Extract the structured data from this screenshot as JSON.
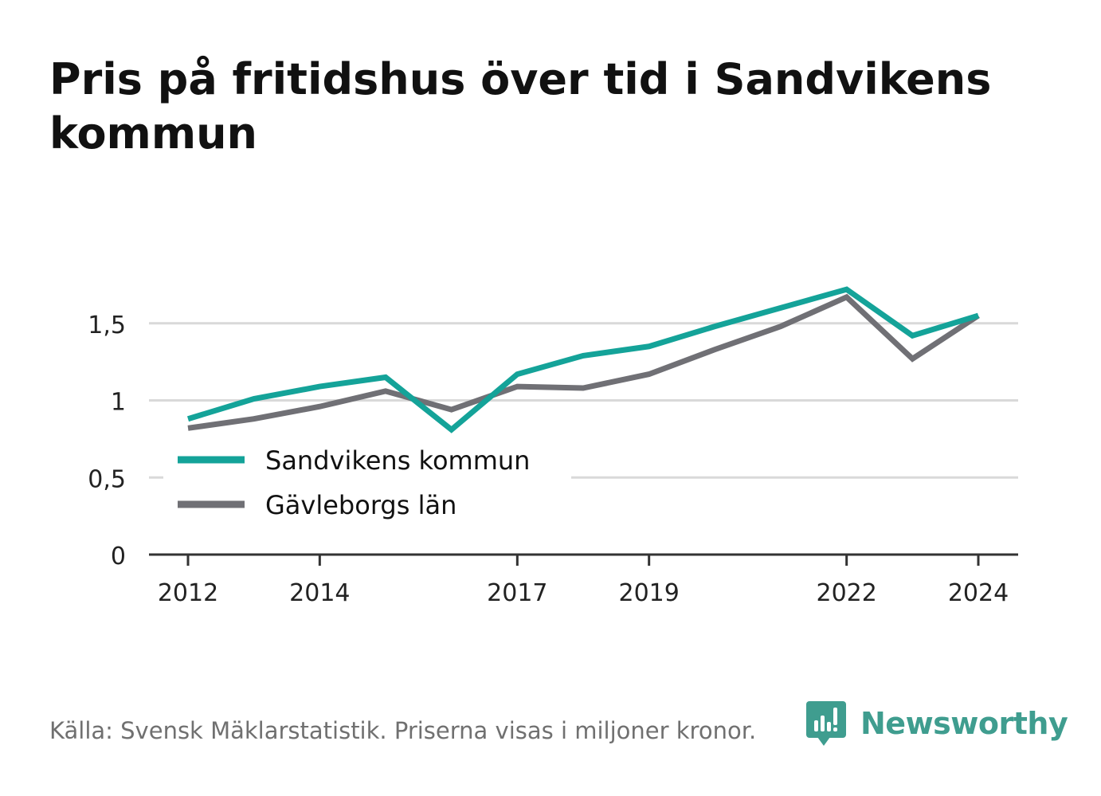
{
  "title": "Pris på fritidshus över tid i Sandvikens kommun",
  "source": "Källa: Svensk Mäklarstatistik. Priserna visas i miljoner kronor.",
  "brand": {
    "name": "Newsworthy",
    "icon": "newsworthy-logo-icon",
    "color": "#3f9d8f"
  },
  "chart_data": {
    "type": "line",
    "title": "Pris på fritidshus över tid i Sandvikens kommun",
    "xlabel": "",
    "ylabel": "",
    "x": [
      2012,
      2013,
      2014,
      2015,
      2016,
      2017,
      2018,
      2019,
      2020,
      2021,
      2022,
      2023,
      2024
    ],
    "x_ticks": [
      "2012",
      "2014",
      "2017",
      "2019",
      "2022",
      "2024"
    ],
    "y_ticks": [
      "0",
      "0,5",
      "1",
      "1,5"
    ],
    "ylim": [
      0,
      1.9
    ],
    "grid": true,
    "legend_position": "inside-left",
    "series": [
      {
        "name": "Sandvikens kommun",
        "color": "#14a399",
        "values": [
          0.88,
          1.01,
          1.09,
          1.15,
          0.81,
          1.17,
          1.29,
          1.35,
          1.48,
          1.6,
          1.72,
          1.42,
          1.55
        ]
      },
      {
        "name": "Gävleborgs län",
        "color": "#707075",
        "values": [
          0.82,
          0.88,
          0.96,
          1.06,
          0.94,
          1.09,
          1.08,
          1.17,
          1.33,
          1.48,
          1.67,
          1.27,
          1.55
        ]
      }
    ]
  }
}
